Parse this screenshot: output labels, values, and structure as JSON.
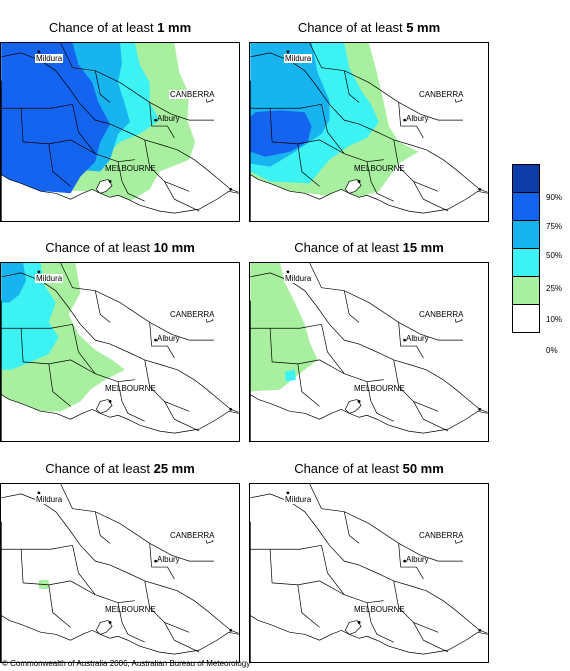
{
  "panels": [
    {
      "title_prefix": "Chance of at least ",
      "amount": "1 mm"
    },
    {
      "title_prefix": "Chance of at least ",
      "amount": "5 mm"
    },
    {
      "title_prefix": "Chance of at least ",
      "amount": "10 mm"
    },
    {
      "title_prefix": "Chance of at least ",
      "amount": "15 mm"
    },
    {
      "title_prefix": "Chance of at least ",
      "amount": "25 mm"
    },
    {
      "title_prefix": "Chance of at least ",
      "amount": "50 mm"
    }
  ],
  "places": {
    "mildura": "Mildura",
    "canberra": "CANBERRA",
    "albury": "Albury",
    "melbourne": "MELBOURNE"
  },
  "legend": {
    "classes": [
      {
        "label": "90%",
        "color": "#0e3da8"
      },
      {
        "label": "75%",
        "color": "#1464f0"
      },
      {
        "label": "50%",
        "color": "#18b4f0"
      },
      {
        "label": "25%",
        "color": "#3cf2f2"
      },
      {
        "label": "10%",
        "color": "#a8f0a0"
      },
      {
        "label": "0%",
        "color": "#ffffff"
      }
    ]
  },
  "footer": "© Commonwealth of Australia 2006, Australian Bureau of Meteorology"
}
